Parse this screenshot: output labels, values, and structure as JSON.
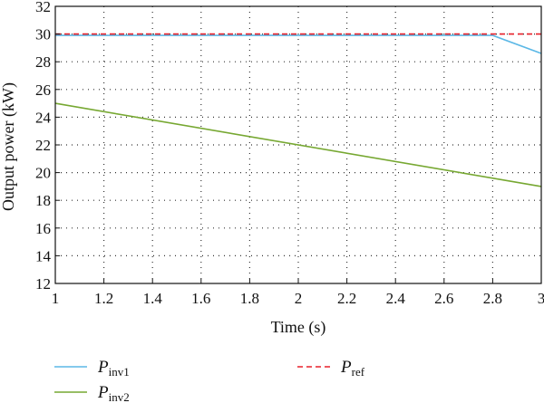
{
  "chart_data": {
    "type": "line",
    "xlabel": "Time (s)",
    "ylabel": "Output power (kW)",
    "xlim": [
      1,
      3
    ],
    "ylim": [
      12,
      32
    ],
    "xticks": [
      1,
      1.2,
      1.4,
      1.6,
      1.8,
      2,
      2.2,
      2.4,
      2.6,
      2.8,
      3
    ],
    "xtick_labels": [
      "1",
      "1.2",
      "1.4",
      "1.6",
      "1.8",
      "2",
      "2.2",
      "2.4",
      "2.6",
      "2.8",
      "3"
    ],
    "yticks": [
      12,
      14,
      16,
      18,
      20,
      22,
      24,
      26,
      28,
      30,
      32
    ],
    "ytick_labels": [
      "12",
      "14",
      "16",
      "18",
      "20",
      "22",
      "24",
      "26",
      "28",
      "30",
      "32"
    ],
    "grid": true,
    "grid_style": "dotted",
    "legend_position": "bottom",
    "series": [
      {
        "key": "inv1",
        "label_main": "P",
        "label_sub": "inv1",
        "color": "#5bb8e6",
        "dash": "solid",
        "x": [
          1,
          2.8,
          3
        ],
        "y": [
          29.9,
          29.9,
          28.6
        ]
      },
      {
        "key": "inv2",
        "label_main": "P",
        "label_sub": "inv2",
        "color": "#77a832",
        "dash": "solid",
        "x": [
          1,
          3
        ],
        "y": [
          25,
          19
        ]
      },
      {
        "key": "ref",
        "label_main": "P",
        "label_sub": "ref",
        "color": "#e8202a",
        "dash": "dashed",
        "x": [
          1,
          3
        ],
        "y": [
          30,
          30
        ]
      }
    ]
  }
}
